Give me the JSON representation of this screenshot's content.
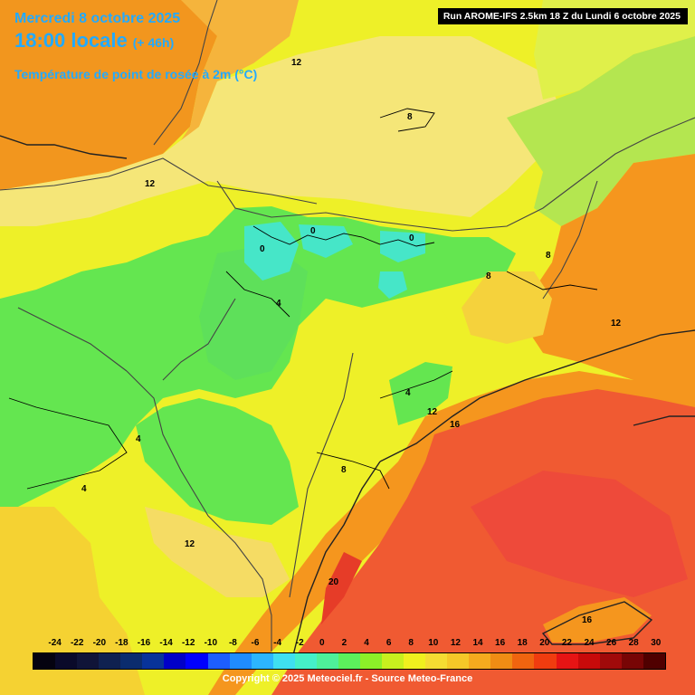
{
  "header": {
    "date": "Mercredi 8 octobre 2025",
    "time": "18:00 locale",
    "offset": "(+ 46h)",
    "parameter": "Température de point de rosée à 2m (°C)",
    "run": "Run AROME-IFS 2.5km 18 Z du Lundi 6 octobre 2025"
  },
  "contour_labels": [
    "12",
    "8",
    "12",
    "0",
    "0",
    "0",
    "4",
    "8",
    "8",
    "12",
    "4",
    "12",
    "16",
    "4",
    "4",
    "8",
    "12",
    "20",
    "16"
  ],
  "legend": {
    "ticks": [
      "-24",
      "-22",
      "-20",
      "-18",
      "-16",
      "-14",
      "-12",
      "-10",
      "-8",
      "-6",
      "-4",
      "-2",
      "0",
      "2",
      "4",
      "6",
      "8",
      "10",
      "12",
      "14",
      "16",
      "18",
      "20",
      "22",
      "24",
      "26",
      "28",
      "30"
    ],
    "colors": [
      "#050310",
      "#0a0a2a",
      "#101438",
      "#0f2150",
      "#0b2c6e",
      "#08339a",
      "#0000c8",
      "#0000ff",
      "#1d5eff",
      "#1f8cff",
      "#2cb5ff",
      "#3fe0f0",
      "#45f0c8",
      "#4ef09a",
      "#5cf05c",
      "#8cf028",
      "#c8f01e",
      "#f0f01e",
      "#f5dc32",
      "#f5c828",
      "#f5aa1e",
      "#f08c14",
      "#f0640f",
      "#f03c0f",
      "#e61414",
      "#c80a0a",
      "#a00a0a",
      "#780505",
      "#500000"
    ],
    "copyright": "Copyright © 2025 Meteociel.fr - Source Meteo-France"
  },
  "colors": {
    "header_text": "#22aaff",
    "land_yellow": "#f5f028",
    "land_green": "#66ee55",
    "land_orange": "#f5a01e",
    "sea_red": "#f05530"
  }
}
